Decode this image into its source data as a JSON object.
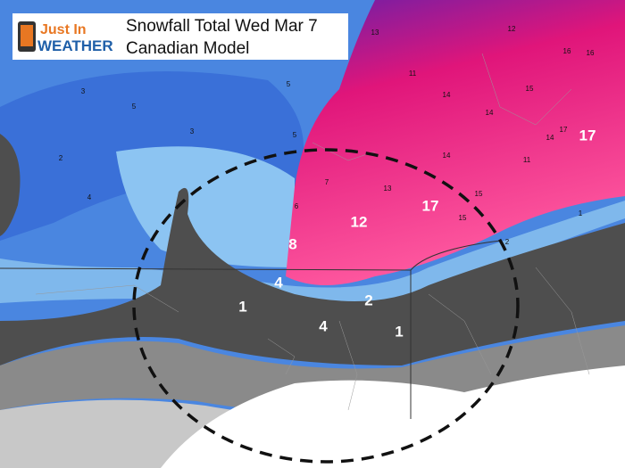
{
  "logo": {
    "line1": "Just In",
    "line2": "WEATHER"
  },
  "title": {
    "line1": "Snowfall Total Wed Mar 7",
    "line2": "Canadian Model"
  },
  "large_labels": [
    17,
    12,
    17,
    8,
    4,
    2,
    1,
    4,
    1
  ],
  "small_labels": [
    12,
    16,
    16,
    13,
    11,
    14,
    15,
    14,
    17,
    14,
    14,
    13,
    15,
    15,
    3,
    5,
    3,
    2,
    4,
    5,
    5,
    7,
    6,
    11,
    2,
    1
  ]
}
